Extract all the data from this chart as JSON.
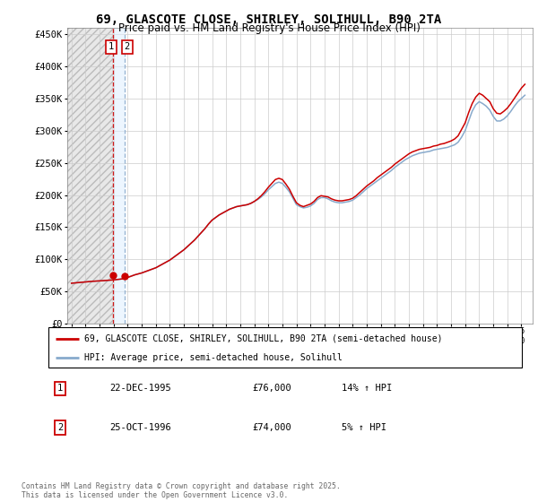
{
  "title_line1": "69, GLASCOTE CLOSE, SHIRLEY, SOLIHULL, B90 2TA",
  "title_line2": "Price paid vs. HM Land Registry's House Price Index (HPI)",
  "legend_label1": "69, GLASCOTE CLOSE, SHIRLEY, SOLIHULL, B90 2TA (semi-detached house)",
  "legend_label2": "HPI: Average price, semi-detached house, Solihull",
  "transaction1_date": "22-DEC-1995",
  "transaction1_price": "£76,000",
  "transaction1_hpi": "14% ↑ HPI",
  "transaction2_date": "25-OCT-1996",
  "transaction2_price": "£74,000",
  "transaction2_hpi": "5% ↑ HPI",
  "footer": "Contains HM Land Registry data © Crown copyright and database right 2025.\nThis data is licensed under the Open Government Licence v3.0.",
  "line1_color": "#cc0000",
  "line2_color": "#88aacc",
  "vline1_color": "#cc0000",
  "vline2_color": "#88aacc",
  "marker1_x": 1995.97,
  "marker1_y": 76000,
  "marker2_x": 1996.81,
  "marker2_y": 74000,
  "ylim": [
    0,
    460000
  ],
  "xlim_start": 1992.7,
  "xlim_end": 2025.8,
  "yticks": [
    0,
    50000,
    100000,
    150000,
    200000,
    250000,
    300000,
    350000,
    400000,
    450000
  ],
  "ytick_labels": [
    "£0",
    "£50K",
    "£100K",
    "£150K",
    "£200K",
    "£250K",
    "£300K",
    "£350K",
    "£400K",
    "£450K"
  ],
  "years_hpi": [
    1993,
    1993.25,
    1993.5,
    1993.75,
    1994,
    1994.25,
    1994.5,
    1994.75,
    1995,
    1995.25,
    1995.5,
    1995.75,
    1996,
    1996.25,
    1996.5,
    1996.75,
    1997,
    1997.25,
    1997.5,
    1997.75,
    1998,
    1998.25,
    1998.5,
    1998.75,
    1999,
    1999.25,
    1999.5,
    1999.75,
    2000,
    2000.25,
    2000.5,
    2000.75,
    2001,
    2001.25,
    2001.5,
    2001.75,
    2002,
    2002.25,
    2002.5,
    2002.75,
    2003,
    2003.25,
    2003.5,
    2003.75,
    2004,
    2004.25,
    2004.5,
    2004.75,
    2005,
    2005.25,
    2005.5,
    2005.75,
    2006,
    2006.25,
    2006.5,
    2006.75,
    2007,
    2007.25,
    2007.5,
    2007.75,
    2008,
    2008.25,
    2008.5,
    2008.75,
    2009,
    2009.25,
    2009.5,
    2009.75,
    2010,
    2010.25,
    2010.5,
    2010.75,
    2011,
    2011.25,
    2011.5,
    2011.75,
    2012,
    2012.25,
    2012.5,
    2012.75,
    2013,
    2013.25,
    2013.5,
    2013.75,
    2014,
    2014.25,
    2014.5,
    2014.75,
    2015,
    2015.25,
    2015.5,
    2015.75,
    2016,
    2016.25,
    2016.5,
    2016.75,
    2017,
    2017.25,
    2017.5,
    2017.75,
    2018,
    2018.25,
    2018.5,
    2018.75,
    2019,
    2019.25,
    2019.5,
    2019.75,
    2020,
    2020.25,
    2020.5,
    2020.75,
    2021,
    2021.25,
    2021.5,
    2021.75,
    2022,
    2022.25,
    2022.5,
    2022.75,
    2023,
    2023.25,
    2023.5,
    2023.75,
    2024,
    2024.25,
    2024.5,
    2024.75,
    2025,
    2025.25
  ],
  "hpi_values": [
    63000,
    63500,
    64000,
    64500,
    65000,
    65500,
    66000,
    66300,
    66600,
    67000,
    67400,
    67800,
    68200,
    68800,
    69400,
    70200,
    72000,
    74000,
    76000,
    77500,
    79000,
    81000,
    83000,
    85000,
    87000,
    90000,
    93000,
    96000,
    99000,
    103000,
    107000,
    111000,
    115000,
    120000,
    125000,
    130000,
    136000,
    142000,
    148000,
    155000,
    161000,
    165000,
    169000,
    172000,
    175000,
    178000,
    180000,
    182000,
    183000,
    184000,
    185000,
    187000,
    190000,
    193000,
    197000,
    202000,
    208000,
    213000,
    218000,
    220000,
    218000,
    212000,
    205000,
    195000,
    185000,
    182000,
    180000,
    181000,
    183000,
    187000,
    193000,
    196000,
    196000,
    194000,
    191000,
    189000,
    188000,
    188000,
    189000,
    190000,
    192000,
    196000,
    200000,
    205000,
    210000,
    214000,
    218000,
    222000,
    226000,
    230000,
    234000,
    238000,
    243000,
    247000,
    251000,
    255000,
    258000,
    261000,
    263000,
    265000,
    266000,
    267000,
    268000,
    270000,
    271000,
    272000,
    273000,
    274000,
    276000,
    278000,
    282000,
    290000,
    300000,
    315000,
    330000,
    340000,
    345000,
    342000,
    338000,
    332000,
    322000,
    315000,
    315000,
    318000,
    323000,
    330000,
    338000,
    345000,
    350000,
    355000
  ],
  "prop_values": [
    63000,
    63500,
    64000,
    64500,
    65000,
    65500,
    66000,
    66300,
    66600,
    67000,
    67400,
    67800,
    68200,
    68800,
    69400,
    70200,
    72000,
    74000,
    76000,
    77500,
    79000,
    81000,
    83000,
    85000,
    87000,
    90000,
    93000,
    96000,
    99000,
    103000,
    107000,
    111000,
    115000,
    120000,
    125000,
    130000,
    136000,
    142000,
    148000,
    155000,
    161000,
    165000,
    169000,
    172000,
    175000,
    178000,
    180000,
    182000,
    183000,
    184000,
    185000,
    187000,
    190000,
    194000,
    199000,
    205000,
    212000,
    218000,
    224000,
    226000,
    224000,
    217000,
    209000,
    198000,
    188000,
    184000,
    182000,
    184000,
    186000,
    190000,
    196000,
    199000,
    198000,
    197000,
    194000,
    192000,
    191000,
    191000,
    192000,
    193000,
    195000,
    199000,
    204000,
    209000,
    214000,
    218000,
    222000,
    227000,
    231000,
    235000,
    239000,
    243000,
    248000,
    252000,
    256000,
    260000,
    264000,
    267000,
    269000,
    271000,
    272000,
    273000,
    274000,
    276000,
    277000,
    279000,
    280000,
    282000,
    284000,
    287000,
    292000,
    302000,
    312000,
    328000,
    342000,
    352000,
    358000,
    355000,
    350000,
    345000,
    334000,
    327000,
    326000,
    330000,
    335000,
    342000,
    350000,
    358000,
    366000,
    372000
  ]
}
